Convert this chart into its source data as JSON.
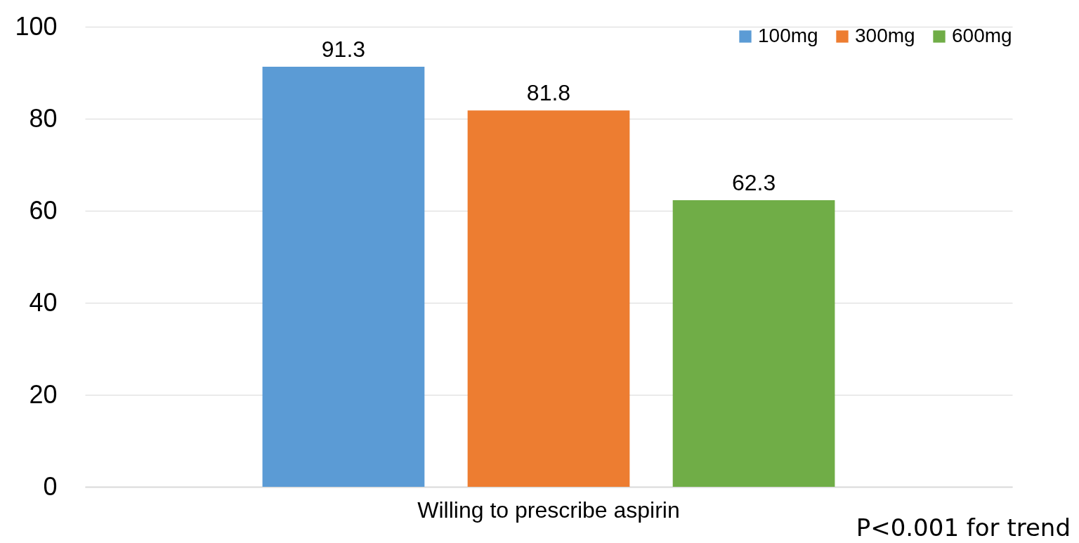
{
  "chart_data": {
    "type": "bar",
    "categories": [
      "Willing to prescribe aspirin"
    ],
    "series": [
      {
        "name": "100mg",
        "color": "#5b9bd5",
        "values": [
          91.3
        ]
      },
      {
        "name": "300mg",
        "color": "#ed7d31",
        "values": [
          81.8
        ]
      },
      {
        "name": "600mg",
        "color": "#70ad47",
        "values": [
          62.3
        ]
      }
    ],
    "ylim": [
      0,
      100
    ],
    "yticks": [
      0,
      20,
      40,
      60,
      80,
      100
    ],
    "grid": "y",
    "legend": "top right",
    "data_labels": true,
    "annotations": [
      "P<0.001 for trend"
    ]
  }
}
